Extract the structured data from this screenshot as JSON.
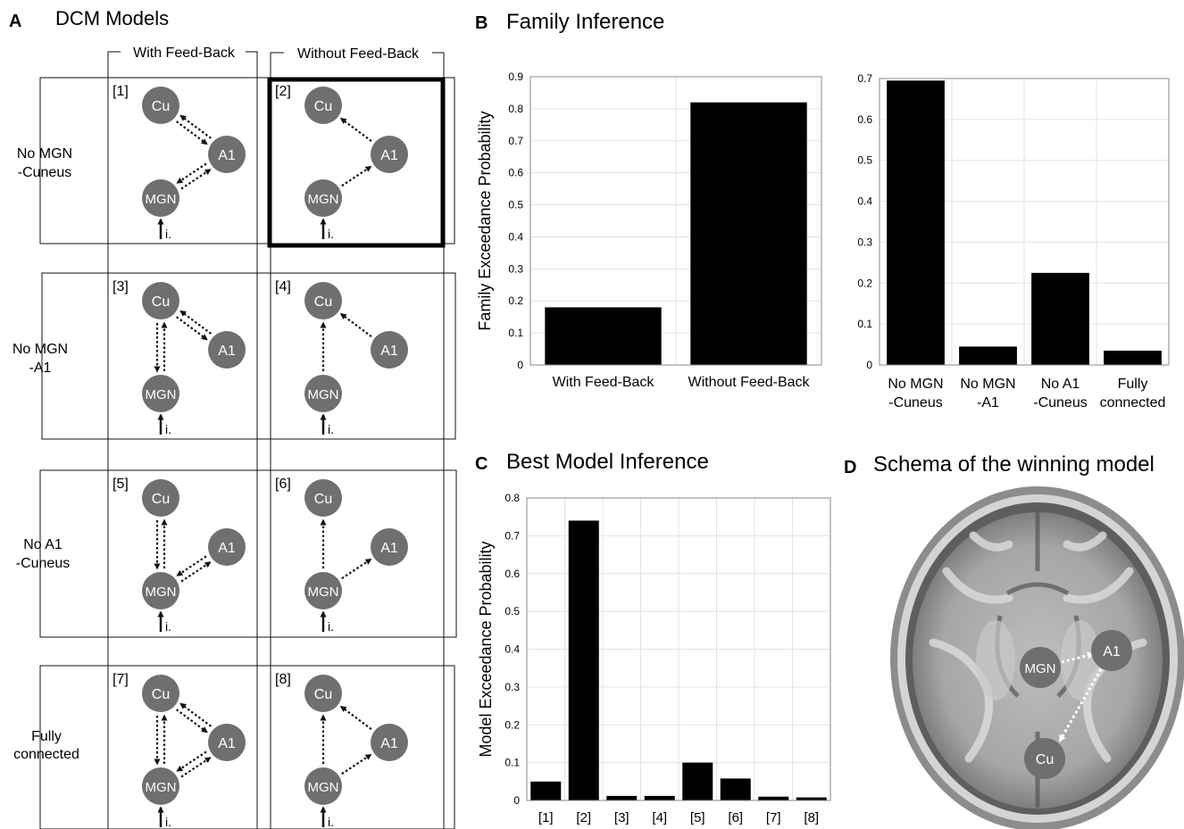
{
  "panel_a": {
    "letter": "A",
    "title": "DCM Models",
    "col_headers": [
      "With Feed-Back",
      "Without Feed-Back"
    ],
    "row_labels": [
      [
        "No MGN",
        "-Cuneus"
      ],
      [
        "No MGN",
        "-A1"
      ],
      [
        "No A1",
        "-Cuneus"
      ],
      [
        "Fully",
        "connected"
      ]
    ],
    "node_labels": {
      "cu": "Cu",
      "a1": "A1",
      "mgn": "MGN"
    },
    "input_label": "i.",
    "models": [
      {
        "id": "[1]",
        "conn": "mgn_a1,a1_cu",
        "bidir": true,
        "selected": false
      },
      {
        "id": "[2]",
        "conn": "mgn_a1,a1_cu",
        "bidir": false,
        "selected": true
      },
      {
        "id": "[3]",
        "conn": "mgn_cu,a1_cu",
        "bidir": true,
        "selected": false
      },
      {
        "id": "[4]",
        "conn": "mgn_cu,a1_cu",
        "bidir": false,
        "selected": false
      },
      {
        "id": "[5]",
        "conn": "mgn_cu,mgn_a1",
        "bidir": true,
        "selected": false
      },
      {
        "id": "[6]",
        "conn": "mgn_cu,mgn_a1",
        "bidir": false,
        "selected": false
      },
      {
        "id": "[7]",
        "conn": "mgn_cu,mgn_a1,a1_cu",
        "bidir": true,
        "selected": false
      },
      {
        "id": "[8]",
        "conn": "mgn_cu,mgn_a1,a1_cu",
        "bidir": false,
        "selected": false
      }
    ]
  },
  "panel_b": {
    "letter": "B",
    "title": "Family Inference"
  },
  "panel_c": {
    "letter": "C",
    "title": "Best Model Inference"
  },
  "panel_d": {
    "letter": "D",
    "title": "Schema of the winning model",
    "nodes": {
      "mgn": "MGN",
      "a1": "A1",
      "cu": "Cu"
    }
  },
  "chart_data": [
    {
      "type": "bar",
      "categories": [
        "With Feed-Back",
        "Without Feed-Back"
      ],
      "values": [
        0.18,
        0.82
      ],
      "ylabel": "Family Exceedance Probability",
      "ylim": [
        0,
        0.9
      ],
      "yticks": [
        "0",
        "0.1",
        "0.2",
        "0.3",
        "0.4",
        "0.5",
        "0.6",
        "0.7",
        "0.8",
        "0.9"
      ],
      "grid": true
    },
    {
      "type": "bar",
      "categories": [
        "No MGN\n-Cuneus",
        "No MGN\n-A1",
        "No A1\n-Cuneus",
        "Fully\nconnected"
      ],
      "values": [
        0.695,
        0.045,
        0.225,
        0.035
      ],
      "ylim": [
        0,
        0.7
      ],
      "yticks": [
        "0",
        "0.1",
        "0.2",
        "0.3",
        "0.4",
        "0.5",
        "0.6",
        "0.7"
      ],
      "grid": true
    },
    {
      "type": "bar",
      "categories": [
        "[1]",
        "[2]",
        "[3]",
        "[4]",
        "[5]",
        "[6]",
        "[7]",
        "[8]"
      ],
      "values": [
        0.05,
        0.74,
        0.012,
        0.012,
        0.1,
        0.058,
        0.01,
        0.008
      ],
      "ylabel": "Model Exceedance Probability",
      "ylim": [
        0,
        0.8
      ],
      "yticks": [
        "0",
        "0.1",
        "0.2",
        "0.3",
        "0.4",
        "0.5",
        "0.6",
        "0.7",
        "0.8"
      ],
      "grid": true
    }
  ]
}
